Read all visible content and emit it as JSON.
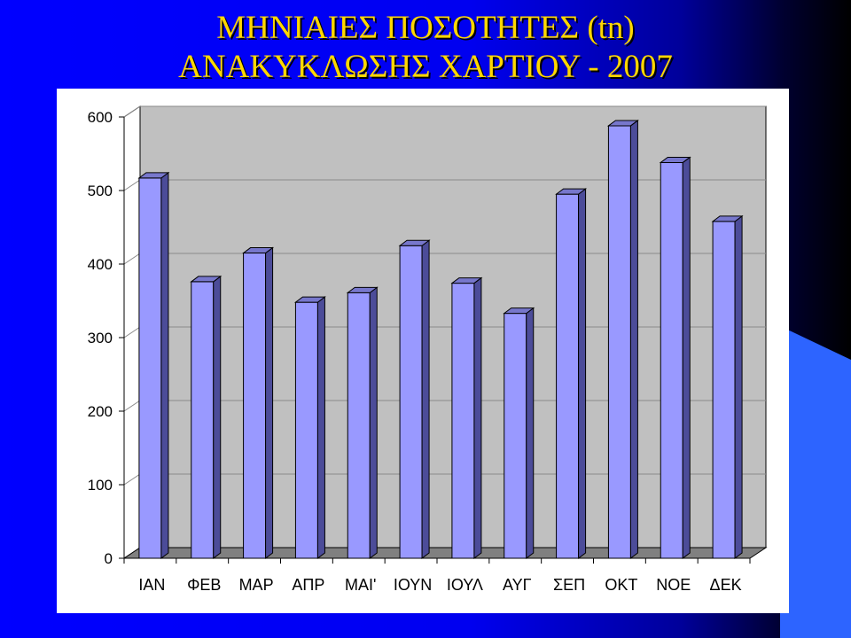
{
  "title_lines": [
    "ΜΗΝΙΑΙΕΣ ΠΟΣΟΤΗΤΕΣ (tn)",
    "ΑΝΑΚΥΚΛΩΣΗΣ ΧΑΡΤΙΟΥ - 2007"
  ],
  "colors": {
    "bar_front": "#9999ff",
    "bar_side": "#4c4c99",
    "bar_top": "#7777cc",
    "wall": "#c0c0c0",
    "floor": "#808080",
    "title": "#ffd700"
  },
  "chart_data": {
    "type": "bar",
    "title": "ΜΗΝΙΑΙΕΣ ΠΟΣΟΤΗΤΕΣ (tn) ΑΝΑΚΥΚΛΩΣΗΣ ΧΑΡΤΙΟΥ - 2007",
    "categories": [
      "ΙΑΝ",
      "ΦΕΒ",
      "ΜΑΡ",
      "ΑΠΡ",
      "ΜΑΙ'",
      "ΙΟΥΝ",
      "ΙΟΥΛ",
      "ΑΥΓ",
      "ΣΕΠ",
      "ΟΚΤ",
      "ΝΟΕ",
      "ΔΕΚ"
    ],
    "values": [
      517,
      376,
      415,
      348,
      361,
      425,
      374,
      333,
      495,
      588,
      538,
      458
    ],
    "ylim": [
      0,
      600
    ],
    "yticks": [
      0,
      100,
      200,
      300,
      400,
      500,
      600
    ],
    "grid": true,
    "legend": "none"
  }
}
